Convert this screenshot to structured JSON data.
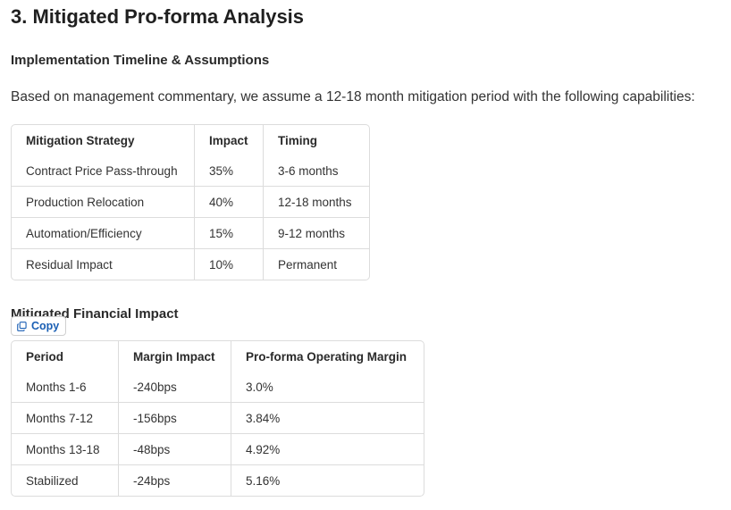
{
  "section": {
    "title": "3. Mitigated Pro-forma Analysis",
    "subtitle": "Implementation Timeline & Assumptions",
    "intro": "Based on management commentary, we assume a 12-18 month mitigation period with the following capabilities:"
  },
  "strategy_table": {
    "headers": [
      "Mitigation Strategy",
      "Impact",
      "Timing"
    ],
    "rows": [
      [
        "Contract Price Pass-through",
        "35%",
        "3-6 months"
      ],
      [
        "Production Relocation",
        "40%",
        "12-18 months"
      ],
      [
        "Automation/Efficiency",
        "15%",
        "9-12 months"
      ],
      [
        "Residual Impact",
        "10%",
        "Permanent"
      ]
    ]
  },
  "financial": {
    "heading": "Mitigated Financial Impact",
    "copy_label": "Copy",
    "copy_icon": "copy-icon"
  },
  "financial_table": {
    "headers": [
      "Period",
      "Margin Impact",
      "Pro-forma Operating Margin"
    ],
    "rows": [
      [
        "Months 1-6",
        "-240bps",
        "3.0%"
      ],
      [
        "Months 7-12",
        "-156bps",
        "3.84%"
      ],
      [
        "Months 13-18",
        "-48bps",
        "4.92%"
      ],
      [
        "Stabilized",
        "-24bps",
        "5.16%"
      ]
    ]
  },
  "colors": {
    "text": "#1f1f1f",
    "border": "#dcdcdc",
    "accent": "#1a5fb4"
  }
}
